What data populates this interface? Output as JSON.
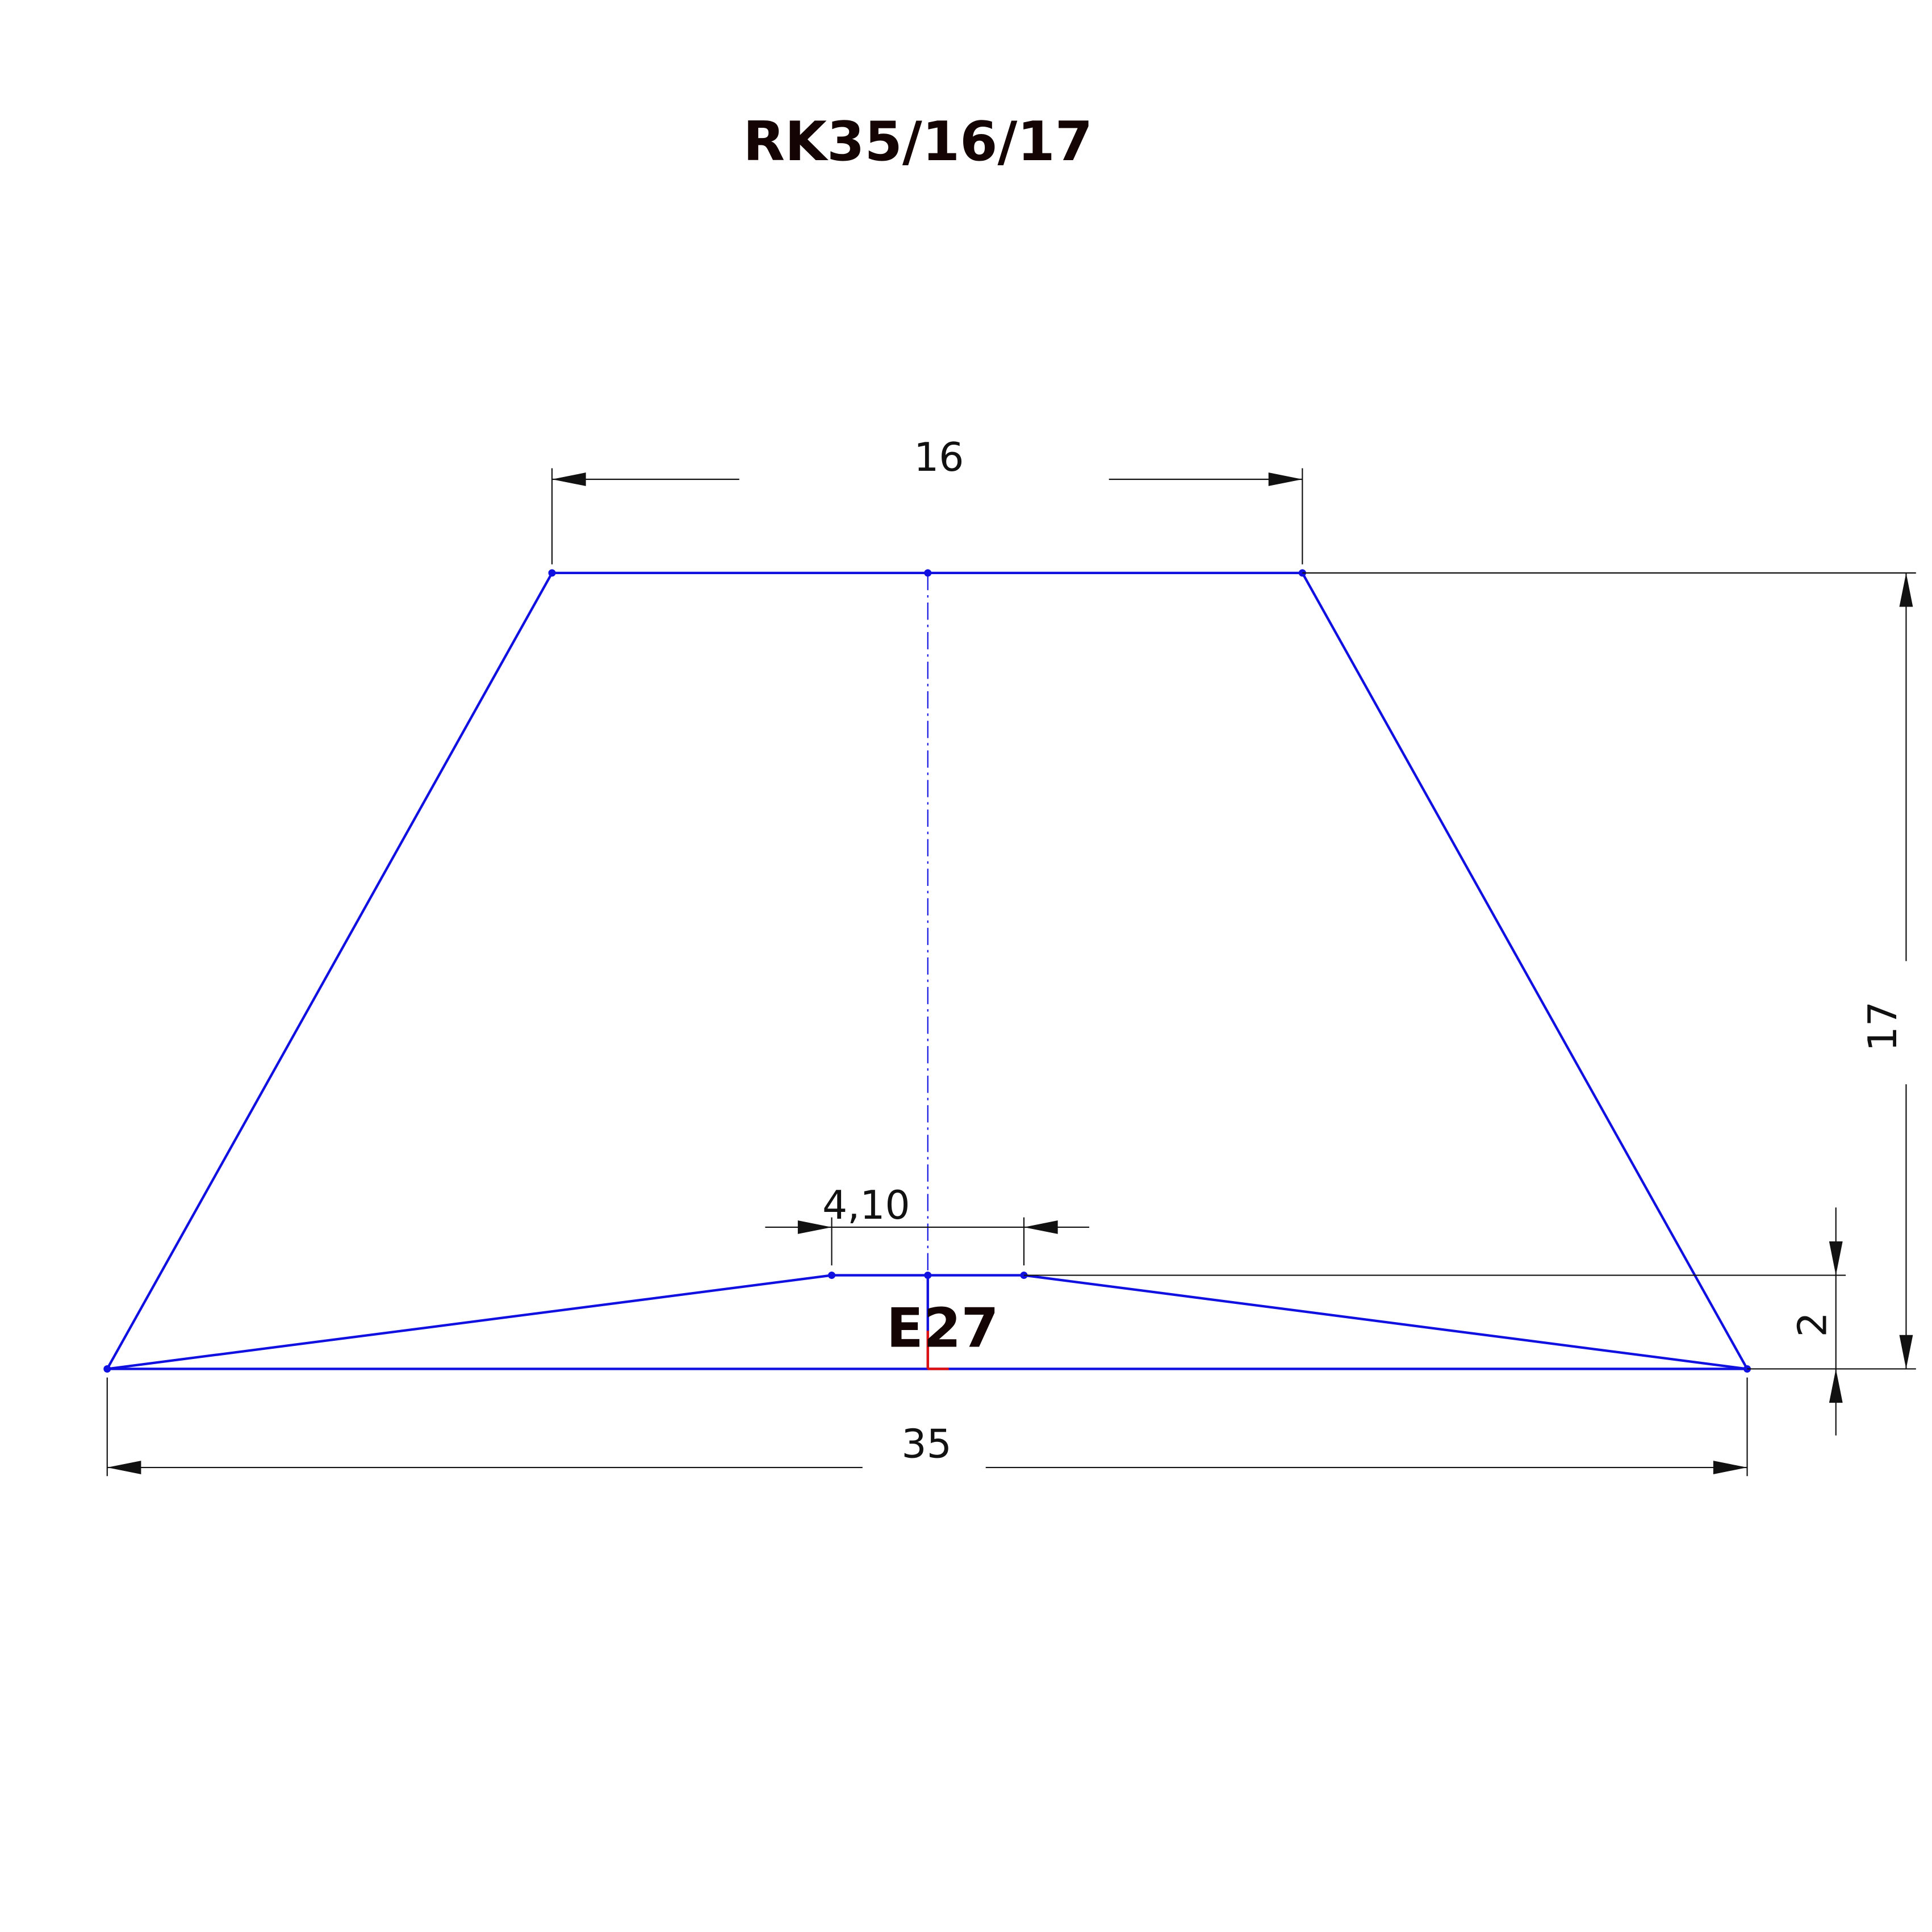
{
  "title": "RK35/16/17",
  "label": "E27",
  "dimensions": {
    "top_width": "16",
    "bottom_width": "35",
    "height": "17",
    "step_height": "2",
    "inner_width": "4,10"
  },
  "colors": {
    "geometry": "#1010e0",
    "dimension": "#111111",
    "origin": "#e01010"
  }
}
